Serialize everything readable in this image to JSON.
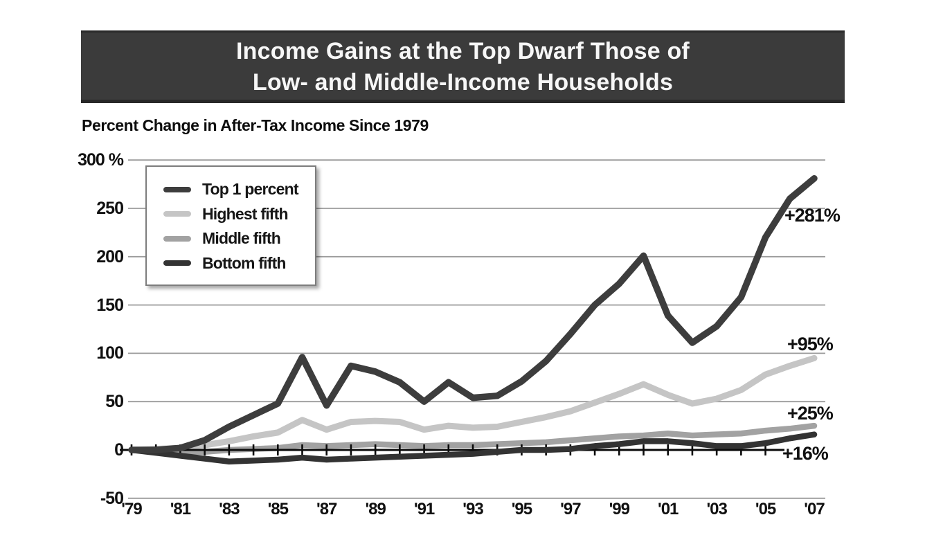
{
  "banner": {
    "title_line1": "Income Gains at the Top Dwarf Those of",
    "title_line2": "Low- and Middle-Income Households"
  },
  "subtitle": "Percent Change in After-Tax Income Since 1979",
  "chart_data": {
    "type": "line",
    "title": "Income Gains at the Top Dwarf Those of Low- and Middle-Income Households",
    "subtitle": "Percent Change in After-Tax Income Since 1979",
    "x": [
      1979,
      1980,
      1981,
      1982,
      1983,
      1984,
      1985,
      1986,
      1987,
      1988,
      1989,
      1990,
      1991,
      1992,
      1993,
      1994,
      1995,
      1996,
      1997,
      1998,
      1999,
      2000,
      2001,
      2002,
      2003,
      2004,
      2005,
      2006,
      2007
    ],
    "x_tick_labels": [
      "'79",
      "'81",
      "'83",
      "'85",
      "'87",
      "'89",
      "'91",
      "'93",
      "'95",
      "'97",
      "'99",
      "'01",
      "'03",
      "'05",
      "'07"
    ],
    "y_ticks": [
      {
        "label": "300 %",
        "v": 300
      },
      {
        "label": "250",
        "v": 250
      },
      {
        "label": "200",
        "v": 200
      },
      {
        "label": "150",
        "v": 150
      },
      {
        "label": "100",
        "v": 100
      },
      {
        "label": "50",
        "v": 50
      },
      {
        "label": "0",
        "v": 0
      },
      {
        "label": "-50",
        "v": -50
      }
    ],
    "ylim": [
      -50,
      300
    ],
    "grid": true,
    "legend_position": "top-left",
    "series": [
      {
        "name": "Top 1 percent",
        "color": "#3d3d3d",
        "end_label": "+281%",
        "values": [
          0,
          0,
          2,
          10,
          24,
          36,
          48,
          96,
          46,
          87,
          81,
          70,
          50,
          70,
          54,
          56,
          71,
          92,
          120,
          150,
          172,
          201,
          139,
          111,
          128,
          158,
          220,
          260,
          281
        ]
      },
      {
        "name": "Highest fifth",
        "color": "#c5c5c5",
        "end_label": "+95%",
        "values": [
          0,
          1,
          2,
          5,
          9,
          14,
          18,
          31,
          21,
          29,
          30,
          29,
          21,
          25,
          23,
          24,
          29,
          34,
          40,
          49,
          58,
          68,
          57,
          48,
          53,
          62,
          78,
          87,
          95
        ]
      },
      {
        "name": "Middle fifth",
        "color": "#a2a2a2",
        "end_label": "+25%",
        "values": [
          0,
          -1,
          -2,
          -2,
          0,
          1,
          2,
          5,
          4,
          5,
          6,
          5,
          4,
          5,
          5,
          6,
          7,
          8,
          10,
          12,
          14,
          15,
          17,
          15,
          16,
          17,
          20,
          22,
          25
        ]
      },
      {
        "name": "Bottom fifth",
        "color": "#333333",
        "end_label": "+16%",
        "values": [
          0,
          -3,
          -6,
          -9,
          -12,
          -11,
          -10,
          -8,
          -10,
          -9,
          -8,
          -7,
          -6,
          -5,
          -4,
          -2,
          0,
          0,
          1,
          4,
          6,
          9,
          9,
          7,
          4,
          4,
          7,
          12,
          16
        ]
      }
    ],
    "gridline_color": "#9b9b9b",
    "axis_color": "#0b0b0b"
  }
}
